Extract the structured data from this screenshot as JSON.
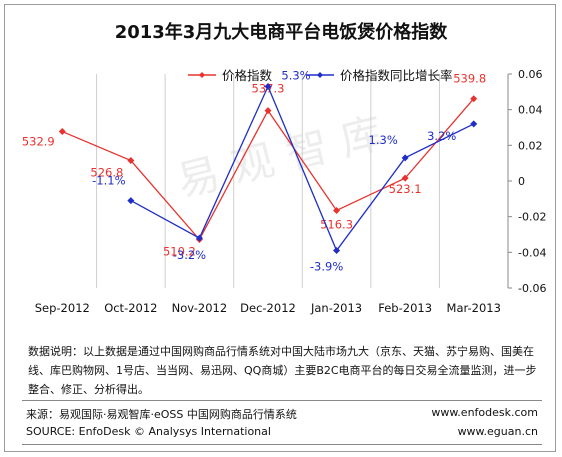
{
  "title": "2013年3月九大电商平台电饭煲价格指数",
  "watermark": "易观智库",
  "chart_data": {
    "type": "line",
    "categories": [
      "Sep-2012",
      "Oct-2012",
      "Nov-2012",
      "Dec-2012",
      "Jan-2013",
      "Feb-2013",
      "Mar-2013"
    ],
    "series": [
      {
        "name": "价格指数",
        "axis": "left",
        "color": "#e8322e",
        "values": [
          532.9,
          526.8,
          510.2,
          537.3,
          516.3,
          523.1,
          539.8
        ],
        "labels": [
          "532.9",
          "526.8",
          "510.2",
          "537.3",
          "516.3",
          "523.1",
          "539.8"
        ]
      },
      {
        "name": "价格指数同比增长率",
        "axis": "right",
        "color": "#1f2ec8",
        "values": [
          null,
          -0.011,
          -0.032,
          0.053,
          -0.039,
          0.013,
          0.032
        ],
        "labels": [
          "",
          "-1.1%",
          "-3.2%",
          "5.3%",
          "-3.9%",
          "1.3%",
          "3.2%"
        ]
      }
    ],
    "y_right": {
      "ticks": [
        0.06,
        0.04,
        0.02,
        0,
        -0.02,
        -0.04,
        -0.06
      ],
      "tick_labels": [
        "0.06",
        "0.04",
        "0.02",
        "0",
        "-0.02",
        "-0.04",
        "-0.06"
      ],
      "range": [
        -0.06,
        0.06
      ]
    },
    "y_left_range": [
      500,
      545
    ],
    "legend_placement": "top"
  },
  "note": "数据说明：以上数据是通过中国网购商品行情系统对中国大陆市场九大（京东、天猫、苏宁易购、国美在线、库巴购物网、1号店、当当网、易迅网、QQ商城）主要B2C电商平台的每日交易全流量监测，进一步整合、修正、分析得出。",
  "footer": {
    "source_cn": "来源：易观国际·易观智库·eOSS 中国网购商品行情系统",
    "source_en": "SOURCE: EnfoDesk © Analysys International",
    "url1": "www.enfodesk.com",
    "url2": "www.eguan.cn"
  }
}
